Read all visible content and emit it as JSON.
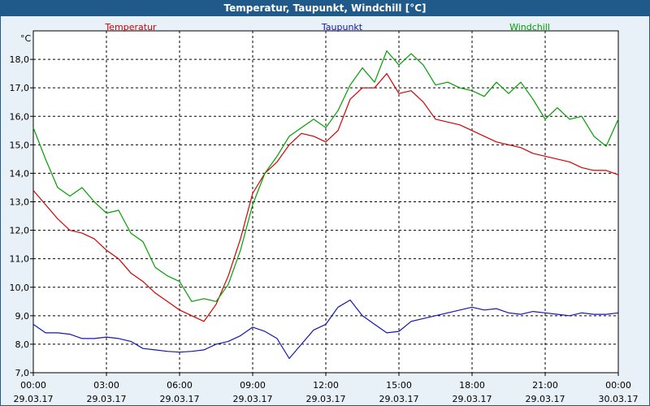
{
  "window": {
    "title": "Temperatur, Taupunkt, Windchill [°C]"
  },
  "chart_data": {
    "type": "line",
    "unit_label": "°C",
    "ylim": [
      7.0,
      19.0
    ],
    "y_ticks": [
      "7,0",
      "8,0",
      "9,0",
      "10,0",
      "11,0",
      "12,0",
      "13,0",
      "14,0",
      "15,0",
      "16,0",
      "17,0",
      "18,0"
    ],
    "x_ticks": [
      {
        "time": "00:00",
        "date": "29.03.17"
      },
      {
        "time": "03:00",
        "date": "29.03.17"
      },
      {
        "time": "06:00",
        "date": "29.03.17"
      },
      {
        "time": "09:00",
        "date": "29.03.17"
      },
      {
        "time": "12:00",
        "date": "29.03.17"
      },
      {
        "time": "15:00",
        "date": "29.03.17"
      },
      {
        "time": "18:00",
        "date": "29.03.17"
      },
      {
        "time": "21:00",
        "date": "29.03.17"
      },
      {
        "time": "00:00",
        "date": "30.03.17"
      }
    ],
    "grid": true,
    "legend_position": "top",
    "x_hours": [
      0,
      0.5,
      1,
      1.5,
      2,
      2.5,
      3,
      3.5,
      4,
      4.5,
      5,
      5.5,
      6,
      6.5,
      7,
      7.5,
      8,
      8.5,
      9,
      9.5,
      10,
      10.5,
      11,
      11.5,
      12,
      12.5,
      13,
      13.5,
      14,
      14.5,
      15,
      15.5,
      16,
      16.5,
      17,
      17.5,
      18,
      18.5,
      19,
      19.5,
      20,
      20.5,
      21,
      21.5,
      22,
      22.5,
      23,
      23.5,
      24
    ],
    "series": [
      {
        "name": "Temperatur",
        "color": "#d40000",
        "values": [
          13.4,
          12.9,
          12.4,
          12.0,
          11.9,
          11.7,
          11.3,
          11.0,
          10.5,
          10.2,
          9.8,
          9.5,
          9.2,
          9.0,
          8.8,
          9.4,
          10.4,
          11.7,
          13.3,
          14.0,
          14.4,
          15.0,
          15.4,
          15.3,
          15.1,
          15.5,
          16.6,
          17.0,
          17.0,
          17.5,
          16.8,
          16.9,
          16.5,
          15.9,
          15.8,
          15.7,
          15.5,
          15.3,
          15.1,
          15.0,
          14.9,
          14.7,
          14.6,
          14.5,
          14.4,
          14.2,
          14.1,
          14.1,
          13.95
        ]
      },
      {
        "name": "Taupunkt",
        "color": "#1616b0",
        "values": [
          8.7,
          8.4,
          8.4,
          8.35,
          8.2,
          8.2,
          8.25,
          8.2,
          8.1,
          7.85,
          7.8,
          7.75,
          7.72,
          7.75,
          7.8,
          8.0,
          8.1,
          8.3,
          8.6,
          8.45,
          8.2,
          7.5,
          8.0,
          8.5,
          8.7,
          9.3,
          9.55,
          9.0,
          8.7,
          8.4,
          8.45,
          8.8,
          8.9,
          9.0,
          9.1,
          9.2,
          9.3,
          9.2,
          9.25,
          9.1,
          9.05,
          9.15,
          9.1,
          9.05,
          9.0,
          9.1,
          9.05,
          9.05,
          9.1
        ]
      },
      {
        "name": "Windchill",
        "color": "#00a000",
        "values": [
          15.6,
          14.5,
          13.5,
          13.2,
          13.5,
          13.0,
          12.6,
          12.7,
          11.9,
          11.6,
          10.7,
          10.4,
          10.2,
          9.5,
          9.6,
          9.5,
          10.1,
          11.3,
          12.9,
          14.0,
          14.6,
          15.3,
          15.6,
          15.9,
          15.6,
          16.2,
          17.1,
          17.7,
          17.2,
          18.3,
          17.8,
          18.2,
          17.8,
          17.1,
          17.2,
          17.0,
          16.9,
          16.7,
          17.2,
          16.8,
          17.2,
          16.6,
          15.9,
          16.3,
          15.9,
          16.0,
          15.3,
          14.95,
          15.9
        ]
      }
    ]
  }
}
